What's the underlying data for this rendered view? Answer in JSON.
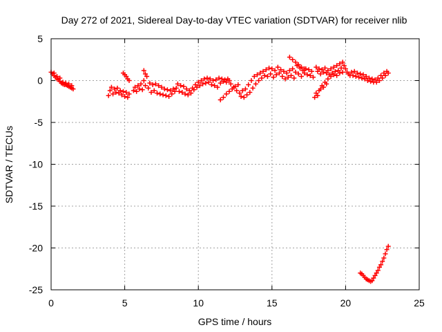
{
  "chart_data": {
    "type": "scatter",
    "title": "Day 272 of 2021, Sidereal Day-to-day VTEC variation (SDTVAR) for receiver nlib",
    "xlabel": "GPS time / hours",
    "ylabel": "SDTVAR / TECUs",
    "xlim": [
      0,
      25
    ],
    "ylim": [
      -25,
      5
    ],
    "xticks": [
      0,
      5,
      10,
      15,
      20,
      25
    ],
    "yticks": [
      5,
      0,
      -5,
      -10,
      -15,
      -20,
      -25
    ],
    "grid": true,
    "marker": "+",
    "color": "#ff0000",
    "series": [
      {
        "name": "SDTVAR",
        "points": [
          [
            0.0,
            1.0
          ],
          [
            0.1,
            0.8
          ],
          [
            0.2,
            0.6
          ],
          [
            0.3,
            0.4
          ],
          [
            0.4,
            0.2
          ],
          [
            0.5,
            0.1
          ],
          [
            0.6,
            -0.1
          ],
          [
            0.7,
            -0.3
          ],
          [
            0.8,
            -0.4
          ],
          [
            0.9,
            -0.5
          ],
          [
            1.0,
            -0.5
          ],
          [
            1.1,
            -0.6
          ],
          [
            1.2,
            -0.7
          ],
          [
            1.3,
            -0.8
          ],
          [
            1.4,
            -0.9
          ],
          [
            1.5,
            -1.0
          ],
          [
            0.2,
            0.9
          ],
          [
            0.4,
            0.5
          ],
          [
            0.6,
            0.3
          ],
          [
            0.8,
            -0.2
          ],
          [
            1.0,
            -0.3
          ],
          [
            1.2,
            -0.4
          ],
          [
            1.4,
            -0.6
          ],
          [
            3.9,
            -1.8
          ],
          [
            4.0,
            -1.2
          ],
          [
            4.1,
            -0.8
          ],
          [
            4.2,
            -1.6
          ],
          [
            4.3,
            -1.0
          ],
          [
            4.4,
            -1.4
          ],
          [
            4.5,
            -0.9
          ],
          [
            4.6,
            -1.5
          ],
          [
            4.7,
            -1.2
          ],
          [
            4.8,
            -1.7
          ],
          [
            4.9,
            -1.3
          ],
          [
            5.0,
            -1.9
          ],
          [
            5.1,
            -1.4
          ],
          [
            5.2,
            -2.0
          ],
          [
            5.3,
            -1.6
          ],
          [
            4.9,
            0.9
          ],
          [
            5.0,
            0.7
          ],
          [
            5.1,
            0.5
          ],
          [
            5.2,
            0.2
          ],
          [
            5.3,
            0.0
          ],
          [
            5.6,
            -1.2
          ],
          [
            5.7,
            -0.8
          ],
          [
            5.8,
            -1.3
          ],
          [
            5.9,
            -0.6
          ],
          [
            6.0,
            -1.0
          ],
          [
            6.1,
            -0.4
          ],
          [
            6.2,
            -1.1
          ],
          [
            6.3,
            0.0
          ],
          [
            6.4,
            -0.6
          ],
          [
            6.5,
            0.5
          ],
          [
            6.6,
            -0.9
          ],
          [
            6.7,
            -0.3
          ],
          [
            6.8,
            -1.4
          ],
          [
            6.9,
            -0.5
          ],
          [
            7.0,
            -1.2
          ],
          [
            7.1,
            -0.4
          ],
          [
            7.2,
            -1.5
          ],
          [
            7.3,
            -0.6
          ],
          [
            7.4,
            -1.6
          ],
          [
            7.5,
            -0.8
          ],
          [
            7.6,
            -1.7
          ],
          [
            7.7,
            -1.0
          ],
          [
            7.8,
            -1.8
          ],
          [
            7.9,
            -1.1
          ],
          [
            8.0,
            -1.9
          ],
          [
            8.1,
            -1.2
          ],
          [
            8.2,
            -1.6
          ],
          [
            8.3,
            -1.0
          ],
          [
            8.4,
            -1.3
          ],
          [
            6.3,
            1.2
          ],
          [
            6.4,
            0.8
          ],
          [
            8.5,
            -0.9
          ],
          [
            8.6,
            -0.4
          ],
          [
            8.7,
            -1.3
          ],
          [
            8.8,
            -0.6
          ],
          [
            8.9,
            -1.4
          ],
          [
            9.0,
            -0.7
          ],
          [
            9.1,
            -1.6
          ],
          [
            9.2,
            -1.0
          ],
          [
            9.3,
            -1.7
          ],
          [
            9.4,
            -1.2
          ],
          [
            9.5,
            -1.5
          ],
          [
            9.6,
            -0.9
          ],
          [
            9.7,
            -1.1
          ],
          [
            9.8,
            -0.5
          ],
          [
            9.9,
            -0.8
          ],
          [
            10.0,
            -0.2
          ],
          [
            10.1,
            -0.6
          ],
          [
            10.2,
            0.0
          ],
          [
            10.3,
            -0.4
          ],
          [
            10.4,
            0.2
          ],
          [
            10.5,
            -0.3
          ],
          [
            10.6,
            0.3
          ],
          [
            10.7,
            -0.2
          ],
          [
            10.8,
            0.2
          ],
          [
            10.9,
            -0.5
          ],
          [
            11.0,
            0.0
          ],
          [
            11.1,
            -0.6
          ],
          [
            11.2,
            0.1
          ],
          [
            11.3,
            -0.8
          ],
          [
            11.4,
            0.3
          ],
          [
            11.5,
            -0.3
          ],
          [
            11.6,
            0.2
          ],
          [
            11.7,
            -0.1
          ],
          [
            11.8,
            0.1
          ],
          [
            11.9,
            -0.2
          ],
          [
            12.0,
            0.2
          ],
          [
            12.1,
            0.0
          ],
          [
            12.2,
            -0.4
          ],
          [
            11.5,
            -2.3
          ],
          [
            11.7,
            -2.0
          ],
          [
            11.9,
            -1.6
          ],
          [
            12.1,
            -1.3
          ],
          [
            12.3,
            -1.0
          ],
          [
            12.5,
            -0.7
          ],
          [
            12.7,
            -0.5
          ],
          [
            12.4,
            -0.8
          ],
          [
            12.6,
            -1.2
          ],
          [
            12.8,
            -1.5
          ],
          [
            12.9,
            -1.9
          ],
          [
            13.0,
            -1.2
          ],
          [
            13.1,
            -2.0
          ],
          [
            13.2,
            -1.0
          ],
          [
            13.3,
            -1.7
          ],
          [
            13.4,
            -0.5
          ],
          [
            13.5,
            -1.4
          ],
          [
            13.6,
            0.0
          ],
          [
            13.7,
            -0.9
          ],
          [
            13.8,
            0.5
          ],
          [
            13.9,
            -0.4
          ],
          [
            14.0,
            0.7
          ],
          [
            14.1,
            0.0
          ],
          [
            14.2,
            0.9
          ],
          [
            14.3,
            0.3
          ],
          [
            14.4,
            1.1
          ],
          [
            14.5,
            0.6
          ],
          [
            14.6,
            1.3
          ],
          [
            14.7,
            0.5
          ],
          [
            14.8,
            1.5
          ],
          [
            14.9,
            0.8
          ],
          [
            15.0,
            1.4
          ],
          [
            15.1,
            0.4
          ],
          [
            15.2,
            1.2
          ],
          [
            15.3,
            0.7
          ],
          [
            15.4,
            1.6
          ],
          [
            15.5,
            0.9
          ],
          [
            15.6,
            1.3
          ],
          [
            15.7,
            0.5
          ],
          [
            15.8,
            1.1
          ],
          [
            15.9,
            0.2
          ],
          [
            16.0,
            0.9
          ],
          [
            16.1,
            0.4
          ],
          [
            16.2,
            1.2
          ],
          [
            16.3,
            0.6
          ],
          [
            16.4,
            1.4
          ],
          [
            16.5,
            0.3
          ],
          [
            16.6,
            1.0
          ],
          [
            16.7,
            1.8
          ],
          [
            16.8,
            0.8
          ],
          [
            16.9,
            1.5
          ],
          [
            17.0,
            0.5
          ],
          [
            17.1,
            1.2
          ],
          [
            17.2,
            0.9
          ],
          [
            17.3,
            1.4
          ],
          [
            17.4,
            0.7
          ],
          [
            17.5,
            1.3
          ],
          [
            17.6,
            0.6
          ],
          [
            17.7,
            1.1
          ],
          [
            17.8,
            0.4
          ],
          [
            16.2,
            2.8
          ],
          [
            16.4,
            2.5
          ],
          [
            16.6,
            2.2
          ],
          [
            16.8,
            1.9
          ],
          [
            17.0,
            1.6
          ],
          [
            17.2,
            1.4
          ],
          [
            17.9,
            -2.0
          ],
          [
            18.0,
            -1.5
          ],
          [
            18.1,
            -1.8
          ],
          [
            18.2,
            -1.2
          ],
          [
            18.3,
            -1.0
          ],
          [
            18.4,
            -0.6
          ],
          [
            18.5,
            -0.8
          ],
          [
            18.6,
            -0.2
          ],
          [
            18.7,
            -0.4
          ],
          [
            18.8,
            0.2
          ],
          [
            18.0,
            1.6
          ],
          [
            18.1,
            1.1
          ],
          [
            18.2,
            1.4
          ],
          [
            18.3,
            0.8
          ],
          [
            18.4,
            1.3
          ],
          [
            18.5,
            1.0
          ],
          [
            18.6,
            1.5
          ],
          [
            18.7,
            0.9
          ],
          [
            18.8,
            1.2
          ],
          [
            18.9,
            0.7
          ],
          [
            19.0,
            1.4
          ],
          [
            19.1,
            0.9
          ],
          [
            19.2,
            1.6
          ],
          [
            19.3,
            1.1
          ],
          [
            19.4,
            1.8
          ],
          [
            19.5,
            1.2
          ],
          [
            19.6,
            2.0
          ],
          [
            19.7,
            1.5
          ],
          [
            19.8,
            2.2
          ],
          [
            19.9,
            1.8
          ],
          [
            20.0,
            1.4
          ],
          [
            20.1,
            1.0
          ],
          [
            20.2,
            0.8
          ],
          [
            20.3,
            0.6
          ],
          [
            19.0,
            0.5
          ],
          [
            19.2,
            0.7
          ],
          [
            19.4,
            0.6
          ],
          [
            19.6,
            0.9
          ],
          [
            19.8,
            1.0
          ],
          [
            20.4,
            1.0
          ],
          [
            20.5,
            0.6
          ],
          [
            20.6,
            1.1
          ],
          [
            20.7,
            0.5
          ],
          [
            20.8,
            0.9
          ],
          [
            20.9,
            0.4
          ],
          [
            21.0,
            0.8
          ],
          [
            21.1,
            0.3
          ],
          [
            21.2,
            0.7
          ],
          [
            21.3,
            0.2
          ],
          [
            21.4,
            0.5
          ],
          [
            21.5,
            0.0
          ],
          [
            21.6,
            0.3
          ],
          [
            21.7,
            -0.1
          ],
          [
            21.8,
            0.2
          ],
          [
            21.9,
            -0.2
          ],
          [
            22.0,
            0.1
          ],
          [
            22.1,
            -0.2
          ],
          [
            22.2,
            0.3
          ],
          [
            22.3,
            0.0
          ],
          [
            22.4,
            0.6
          ],
          [
            22.5,
            0.3
          ],
          [
            22.6,
            0.9
          ],
          [
            22.7,
            0.6
          ],
          [
            22.8,
            1.1
          ],
          [
            22.9,
            0.9
          ],
          [
            21.0,
            -23.0
          ],
          [
            21.1,
            -23.1
          ],
          [
            21.2,
            -23.3
          ],
          [
            21.3,
            -23.5
          ],
          [
            21.4,
            -23.7
          ],
          [
            21.5,
            -23.8
          ],
          [
            21.6,
            -23.9
          ],
          [
            21.7,
            -24.0
          ],
          [
            21.8,
            -23.9
          ],
          [
            21.9,
            -23.6
          ],
          [
            22.0,
            -23.3
          ],
          [
            22.1,
            -23.0
          ],
          [
            22.2,
            -22.7
          ],
          [
            22.3,
            -22.3
          ],
          [
            22.4,
            -22.0
          ],
          [
            22.5,
            -21.6
          ],
          [
            22.6,
            -21.2
          ],
          [
            22.7,
            -20.7
          ],
          [
            22.8,
            -20.2
          ],
          [
            22.9,
            -19.8
          ]
        ]
      }
    ]
  }
}
